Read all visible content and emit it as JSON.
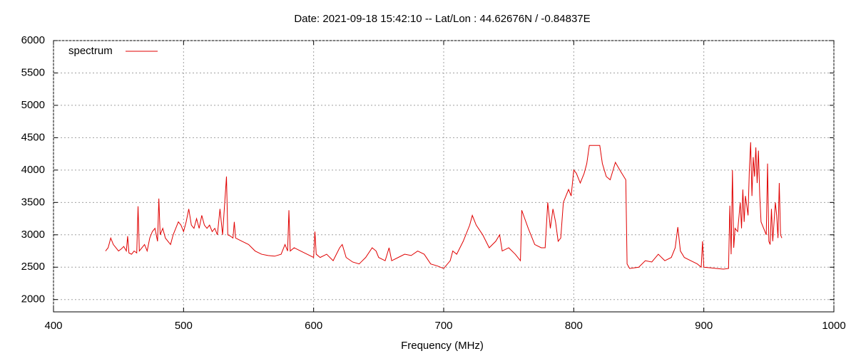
{
  "chart_data": {
    "type": "line",
    "title": "Date: 2021-09-18 15:42:10  --  Lat/Lon : 44.62676N / -0.84837E",
    "x_label": "Frequency (MHz)",
    "xlim": [
      400,
      1000
    ],
    "xticks": [
      400,
      500,
      600,
      700,
      800,
      900,
      1000
    ],
    "ylim": [
      1810,
      6000
    ],
    "yticks": [
      2000,
      2500,
      3000,
      3500,
      4000,
      4500,
      5000,
      5500,
      6000
    ],
    "grid": true,
    "legend": "top-left",
    "x": [
      440,
      442,
      444,
      446,
      448,
      450,
      452,
      454,
      456,
      457,
      458,
      460,
      462,
      464,
      465,
      466,
      468,
      470,
      472,
      474,
      476,
      478,
      480,
      481,
      482,
      484,
      486,
      488,
      490,
      492,
      494,
      496,
      498,
      500,
      502,
      504,
      506,
      508,
      510,
      512,
      514,
      516,
      518,
      520,
      522,
      524,
      526,
      528,
      530,
      533,
      534,
      536,
      538,
      539,
      540,
      545,
      550,
      555,
      560,
      565,
      570,
      575,
      578,
      580,
      581,
      582,
      585,
      590,
      595,
      600,
      601,
      602,
      605,
      610,
      615,
      620,
      622,
      625,
      630,
      635,
      640,
      645,
      648,
      650,
      655,
      658,
      660,
      665,
      670,
      675,
      680,
      685,
      690,
      695,
      700,
      705,
      707,
      710,
      715,
      720,
      722,
      725,
      730,
      735,
      740,
      743,
      745,
      750,
      755,
      759,
      760,
      765,
      770,
      775,
      778,
      780,
      782,
      784,
      786,
      788,
      790,
      792,
      794,
      796,
      798,
      800,
      802,
      805,
      808,
      810,
      812,
      820,
      822,
      825,
      828,
      832,
      836,
      840,
      841,
      843,
      850,
      855,
      860,
      865,
      870,
      875,
      878,
      880,
      882,
      885,
      890,
      895,
      898,
      899,
      900,
      905,
      910,
      915,
      919,
      920,
      921,
      922,
      923,
      924,
      926,
      928,
      929,
      930,
      931,
      932,
      934,
      935,
      936,
      937,
      938,
      939,
      940,
      941,
      942,
      943,
      944,
      946,
      948,
      949,
      950,
      951,
      952,
      953,
      955,
      956,
      957,
      958,
      959,
      960
    ],
    "series": [
      {
        "name": "spectrum",
        "color": "#e00000",
        "values": [
          2750,
          2800,
          2950,
          2850,
          2800,
          2750,
          2780,
          2820,
          2750,
          2980,
          2720,
          2700,
          2750,
          2720,
          3440,
          2750,
          2800,
          2850,
          2750,
          2950,
          3050,
          3100,
          2900,
          3560,
          3000,
          3100,
          2950,
          2900,
          2850,
          3000,
          3100,
          3200,
          3150,
          3050,
          3200,
          3400,
          3150,
          3100,
          3250,
          3100,
          3300,
          3150,
          3100,
          3150,
          3050,
          3100,
          3000,
          3400,
          3000,
          3900,
          3000,
          2980,
          2950,
          3200,
          2950,
          2900,
          2850,
          2750,
          2700,
          2680,
          2670,
          2700,
          2850,
          2750,
          3380,
          2750,
          2800,
          2750,
          2700,
          2650,
          3050,
          2700,
          2650,
          2700,
          2600,
          2800,
          2850,
          2650,
          2580,
          2550,
          2650,
          2800,
          2750,
          2650,
          2600,
          2800,
          2600,
          2650,
          2700,
          2680,
          2750,
          2700,
          2550,
          2520,
          2480,
          2600,
          2750,
          2700,
          2900,
          3150,
          3300,
          3150,
          3000,
          2800,
          2900,
          3000,
          2750,
          2800,
          2700,
          2600,
          3380,
          3100,
          2850,
          2800,
          2800,
          3500,
          3100,
          3400,
          3200,
          2900,
          2950,
          3500,
          3600,
          3700,
          3600,
          4000,
          3950,
          3800,
          3950,
          4100,
          4380,
          4380,
          4100,
          3900,
          3850,
          4120,
          3980,
          3850,
          2550,
          2480,
          2500,
          2600,
          2580,
          2700,
          2600,
          2650,
          2800,
          3120,
          2750,
          2650,
          2600,
          2550,
          2500,
          2900,
          2500,
          2490,
          2480,
          2470,
          2480,
          3450,
          2700,
          4000,
          2800,
          3100,
          3050,
          3500,
          3100,
          3700,
          3200,
          3600,
          3300,
          4000,
          4430,
          3600,
          4200,
          3900,
          4350,
          3800,
          4300,
          3600,
          3200,
          3100,
          3000,
          4100,
          2900,
          2850,
          3400,
          2900,
          3500,
          3300,
          2950,
          3800,
          3000,
          2950
        ]
      }
    ]
  }
}
